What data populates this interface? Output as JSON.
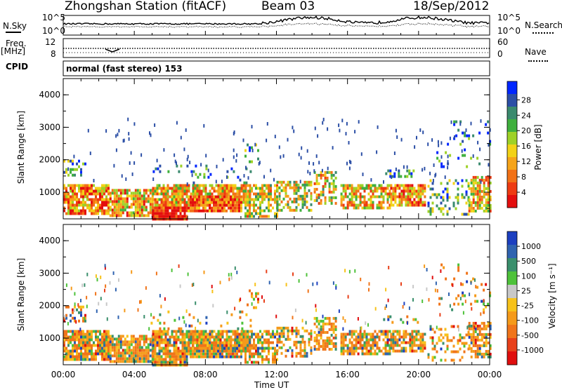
{
  "header": {
    "station": "Zhongshan Station (fitACF)",
    "beam": "Beam 03",
    "date": "18/Sep/2012"
  },
  "top_panels": {
    "nsky_label": "N.Sky",
    "nsearch_label": "N.Search",
    "freq_label_1": "Freq.",
    "freq_label_2": "[MHz]",
    "nave_label": "Nave",
    "cpid_label": "CPID",
    "cpid_text": "normal (fast stereo) 153",
    "noise_ticks_left": [
      "10^5",
      "10^0"
    ],
    "noise_ticks_right": [
      "10^5",
      "10^0"
    ],
    "freq_ticks": [
      "12",
      "8"
    ],
    "nave_ticks": [
      "60",
      "0"
    ]
  },
  "chart_data": [
    {
      "type": "heatmap",
      "name": "Power",
      "ylabel": "Slant Range [km]",
      "xlabel": "",
      "yticks": [
        "1000",
        "2000",
        "3000",
        "4000"
      ],
      "ylim": [
        180,
        4500
      ],
      "colorbar_label": "Power [dB]",
      "colorbar_ticks": [
        "4",
        "8",
        "12",
        "16",
        "20",
        "24",
        "28"
      ],
      "colorbar_colors": [
        "#0026ff",
        "#2c4fa6",
        "#3a8a6e",
        "#3fb03d",
        "#9ed127",
        "#f2d217",
        "#f6a41a",
        "#f27116",
        "#ee3b12",
        "#e40e0e"
      ],
      "range_km": [
        180,
        4500
      ]
    },
    {
      "type": "heatmap",
      "name": "Velocity",
      "ylabel": "Slant Range [km]",
      "xlabel": "Time UT",
      "yticks": [
        "1000",
        "2000",
        "3000",
        "4000"
      ],
      "ylim": [
        180,
        4500
      ],
      "xticks": [
        "00:00",
        "04:00",
        "08:00",
        "12:00",
        "16:00",
        "20:00",
        "00:00"
      ],
      "colorbar_label": "Velocity [m s⁻¹]",
      "colorbar_ticks": [
        "1000",
        "500",
        "100",
        "25",
        "-25",
        "-100",
        "-500",
        "-1000"
      ],
      "colorbar_colors": [
        "#1c3fc0",
        "#2f63b0",
        "#3a8f6c",
        "#4ec23a",
        "#c8c8c8",
        "#f7c21a",
        "#f59a1a",
        "#f0741a",
        "#e8401a",
        "#e00e0e"
      ]
    }
  ]
}
